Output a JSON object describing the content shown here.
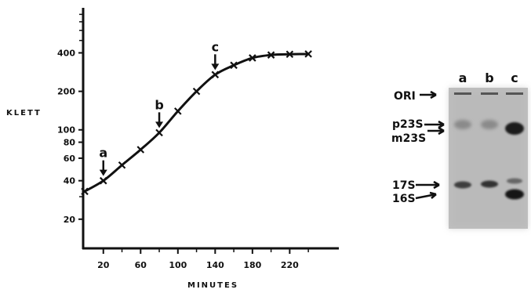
{
  "growth_chart": {
    "ylabel": "KLETT",
    "xlabel": "MINUTES",
    "x_ticks": [
      "20",
      "60",
      "100",
      "140",
      "180",
      "220"
    ],
    "y_ticks": [
      "400",
      "200",
      "100",
      "80",
      "60",
      "40",
      "20"
    ],
    "markers": [
      {
        "label": "a",
        "minutes": 20,
        "klett": 40
      },
      {
        "label": "b",
        "minutes": 80,
        "klett": 95
      },
      {
        "label": "c",
        "minutes": 140,
        "klett": 270
      }
    ]
  },
  "chart_data": {
    "type": "line",
    "title": "",
    "xlabel": "MINUTES",
    "ylabel": "KLETT",
    "y_scale": "log",
    "xlim": [
      0,
      250
    ],
    "ylim": [
      12,
      900
    ],
    "series": [
      {
        "x": [
          0,
          20,
          40,
          60,
          80,
          100,
          120,
          140,
          160,
          180,
          200,
          220,
          240
        ],
        "values": [
          33,
          40,
          53,
          70,
          95,
          140,
          200,
          270,
          320,
          365,
          385,
          390,
          392
        ]
      }
    ]
  },
  "gel": {
    "lanes": [
      "a",
      "b",
      "c"
    ],
    "bands": [
      "ORI",
      "p23S",
      "m23S",
      "17S",
      "16S"
    ]
  }
}
